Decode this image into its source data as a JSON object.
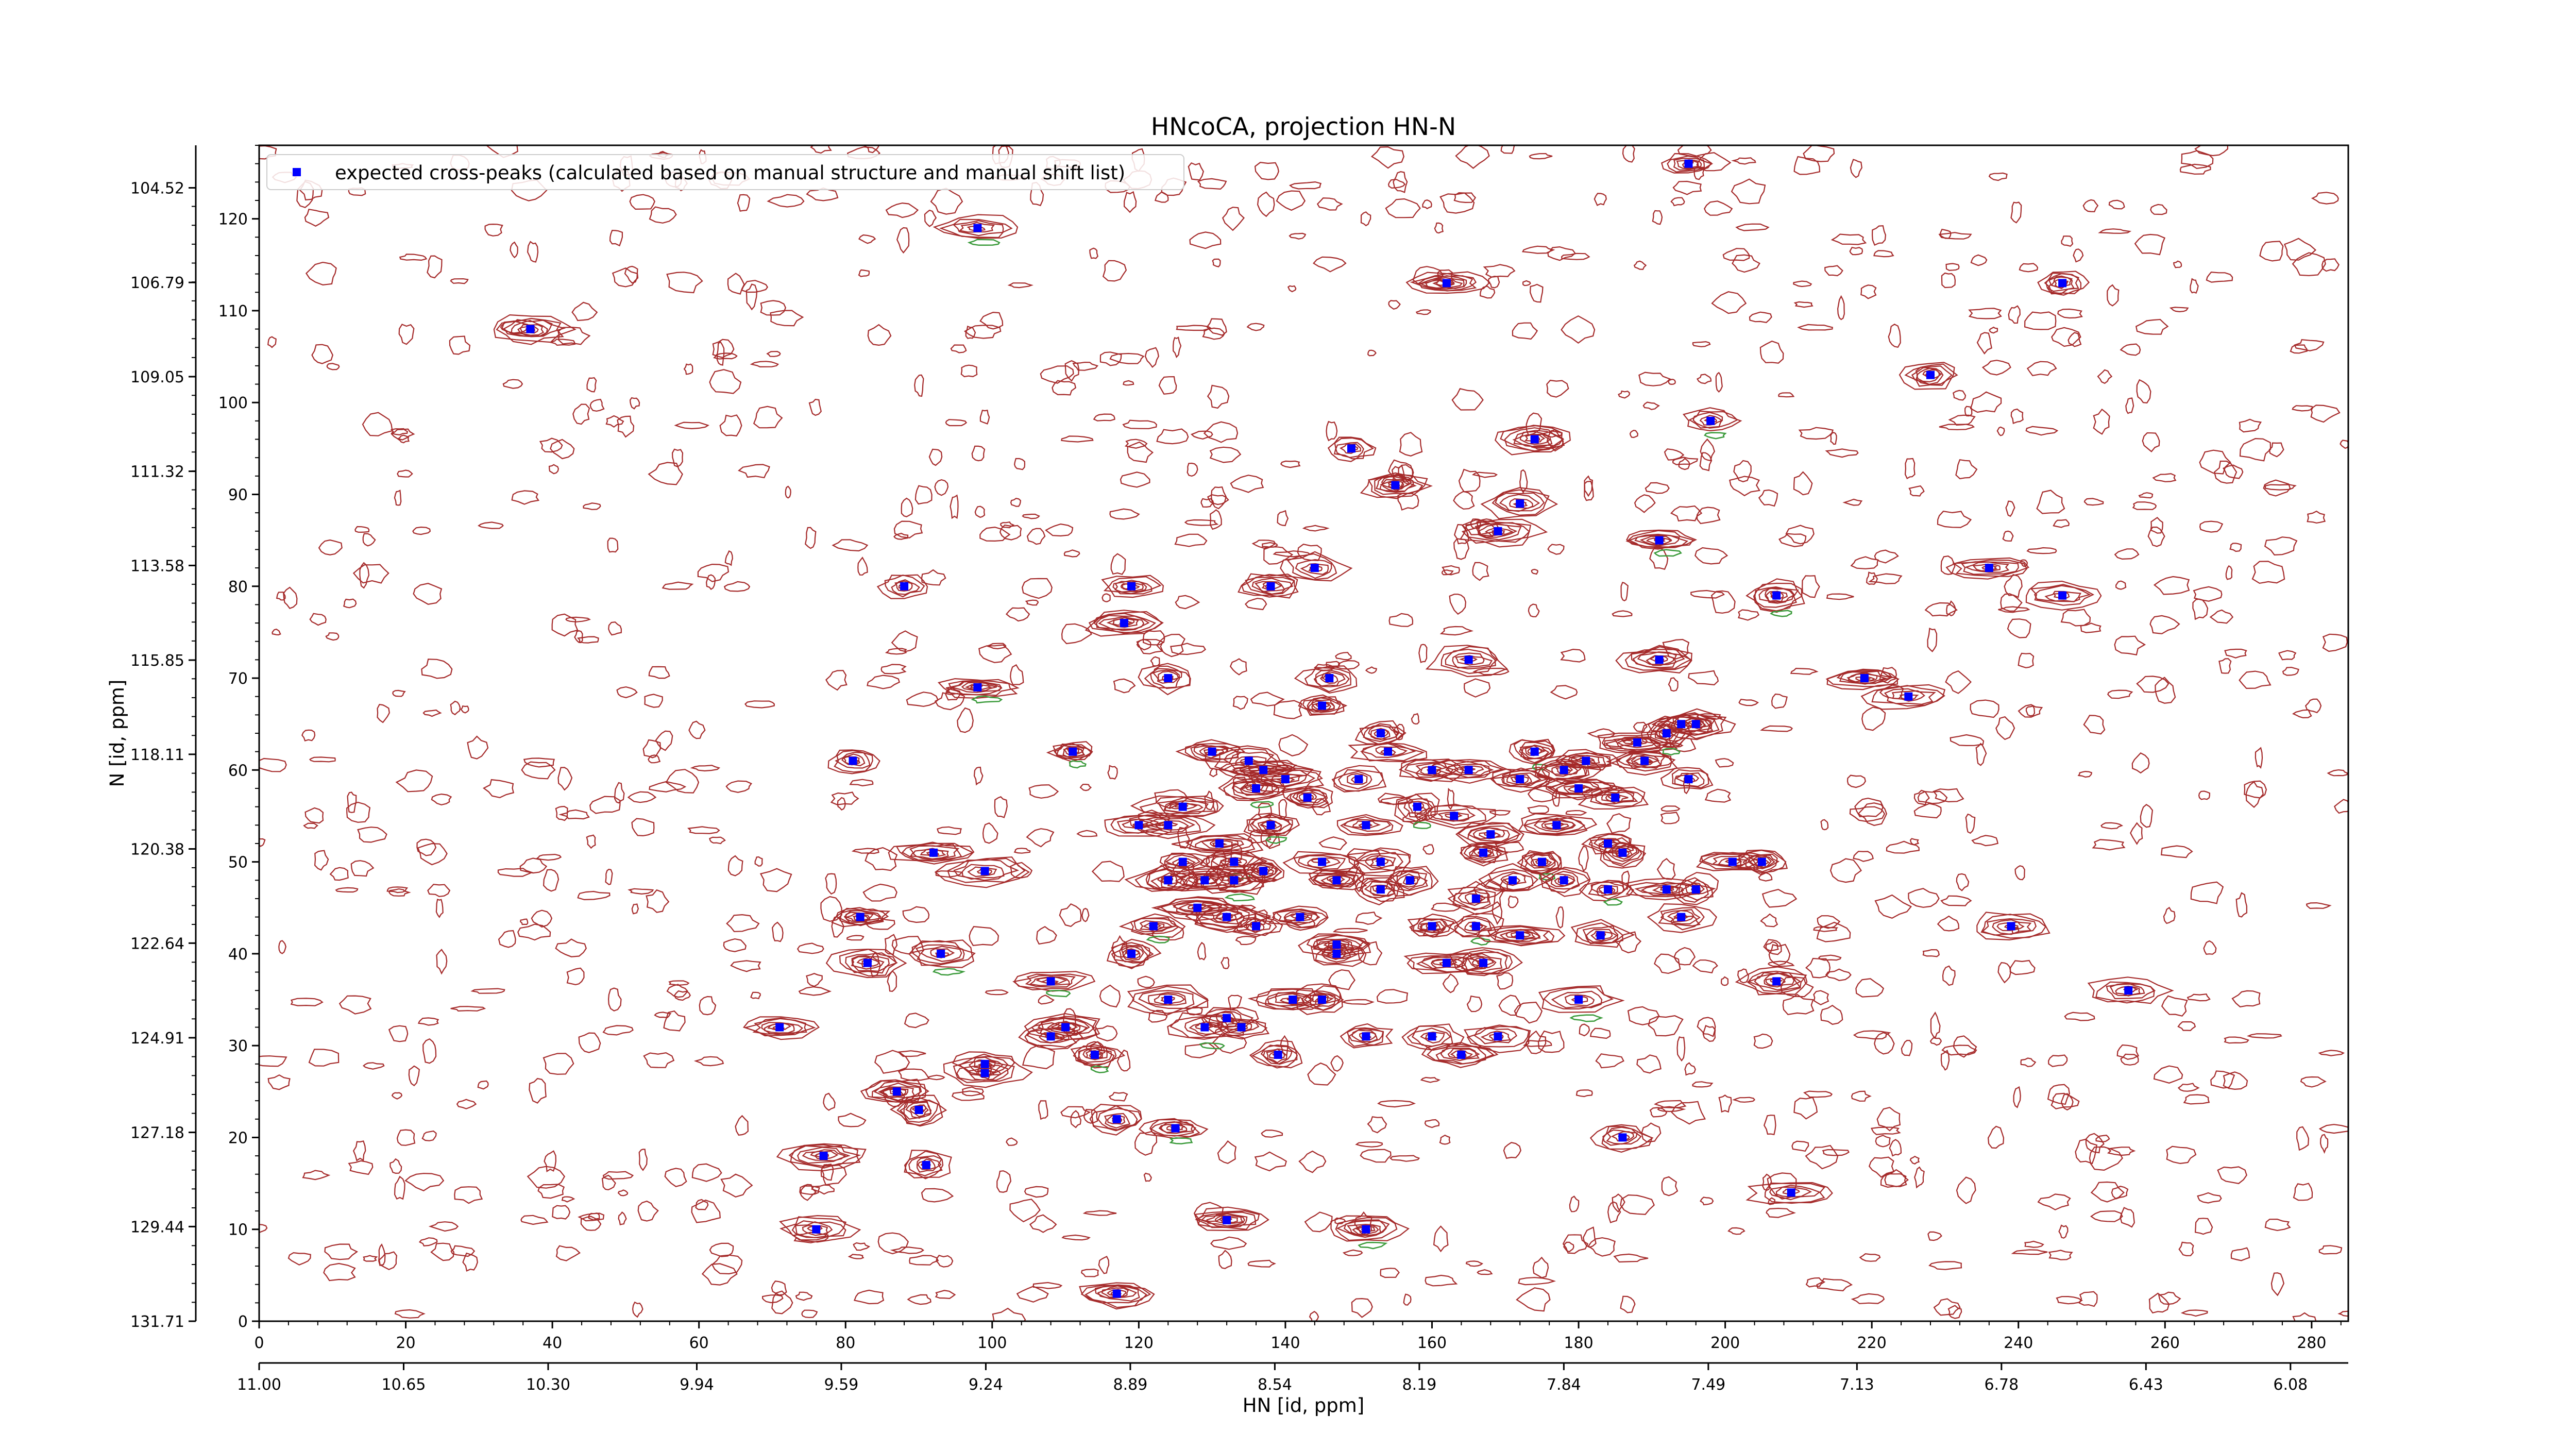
{
  "chart_data": {
    "type": "scatter",
    "title": "HNcoCA, projection HN-N",
    "xlabel": "HN [id, ppm]",
    "ylabel": "N [id, ppm]",
    "x_index_range": [
      0,
      285
    ],
    "y_index_range": [
      0,
      128
    ],
    "x_index_ticks": [
      "0",
      "20",
      "40",
      "60",
      "80",
      "100",
      "120",
      "140",
      "160",
      "180",
      "200",
      "220",
      "240",
      "260",
      "280"
    ],
    "y_index_ticks": [
      "0",
      "10",
      "20",
      "30",
      "40",
      "50",
      "60",
      "70",
      "80",
      "90",
      "100",
      "110",
      "120"
    ],
    "x_ppm_range": [
      11.0,
      5.94
    ],
    "y_ppm_range": [
      131.71,
      103.5
    ],
    "x_ppm_ticks": [
      "11.00",
      "10.65",
      "10.30",
      "9.94",
      "9.59",
      "9.24",
      "8.89",
      "8.54",
      "8.19",
      "7.84",
      "7.49",
      "7.13",
      "6.78",
      "6.43",
      "6.08"
    ],
    "y_ppm_ticks": [
      "131.71",
      "129.44",
      "127.18",
      "124.91",
      "122.64",
      "120.38",
      "118.11",
      "115.85",
      "113.58",
      "111.32",
      "109.05",
      "106.79",
      "104.52"
    ],
    "legend": {
      "placement": "top-left",
      "label": "expected cross-peaks (calculated based on manual structure and manual shift list)"
    },
    "grid": false,
    "colors": {
      "marker": "#0000ff",
      "contour_positive": "#a52a2a",
      "contour_negative": "#3a9a3a"
    },
    "series": [
      {
        "name": "expected cross-peaks (calculated based on manual structure and manual shift list)",
        "points": [
          [
            98,
            119
          ],
          [
            37,
            108
          ],
          [
            162,
            113
          ],
          [
            246,
            113
          ],
          [
            195,
            126
          ],
          [
            228,
            103
          ],
          [
            198,
            98
          ],
          [
            174,
            96
          ],
          [
            149,
            95
          ],
          [
            155,
            91
          ],
          [
            172,
            89
          ],
          [
            169,
            86
          ],
          [
            191,
            85
          ],
          [
            236,
            82
          ],
          [
            88,
            80
          ],
          [
            119,
            80
          ],
          [
            138,
            80
          ],
          [
            144,
            82
          ],
          [
            207,
            79
          ],
          [
            246,
            79
          ],
          [
            118,
            76
          ],
          [
            165,
            72
          ],
          [
            191,
            72
          ],
          [
            124,
            70
          ],
          [
            98,
            69
          ],
          [
            146,
            70
          ],
          [
            219,
            70
          ],
          [
            225,
            68
          ],
          [
            145,
            67
          ],
          [
            153,
            64
          ],
          [
            111,
            62
          ],
          [
            81,
            61
          ],
          [
            130,
            62
          ],
          [
            154,
            62
          ],
          [
            181,
            61
          ],
          [
            188,
            63
          ],
          [
            192,
            64
          ],
          [
            194,
            65
          ],
          [
            196,
            65
          ],
          [
            135,
            61
          ],
          [
            137,
            60
          ],
          [
            140,
            59
          ],
          [
            136,
            58
          ],
          [
            143,
            57
          ],
          [
            150,
            59
          ],
          [
            160,
            60
          ],
          [
            165,
            60
          ],
          [
            172,
            59
          ],
          [
            174,
            62
          ],
          [
            178,
            60
          ],
          [
            180,
            58
          ],
          [
            185,
            57
          ],
          [
            189,
            61
          ],
          [
            195,
            59
          ],
          [
            158,
            56
          ],
          [
            163,
            55
          ],
          [
            126,
            56
          ],
          [
            124,
            54
          ],
          [
            120,
            54
          ],
          [
            131,
            52
          ],
          [
            138,
            54
          ],
          [
            151,
            54
          ],
          [
            168,
            53
          ],
          [
            177,
            54
          ],
          [
            184,
            52
          ],
          [
            126,
            50
          ],
          [
            133,
            50
          ],
          [
            137,
            49
          ],
          [
            145,
            50
          ],
          [
            153,
            50
          ],
          [
            157,
            48
          ],
          [
            167,
            51
          ],
          [
            175,
            50
          ],
          [
            186,
            51
          ],
          [
            92,
            51
          ],
          [
            99,
            49
          ],
          [
            124,
            48
          ],
          [
            129,
            48
          ],
          [
            133,
            48
          ],
          [
            147,
            48
          ],
          [
            153,
            47
          ],
          [
            166,
            46
          ],
          [
            171,
            48
          ],
          [
            178,
            48
          ],
          [
            184,
            47
          ],
          [
            192,
            47
          ],
          [
            201,
            50
          ],
          [
            205,
            50
          ],
          [
            196,
            47
          ],
          [
            82,
            44
          ],
          [
            122,
            43
          ],
          [
            128,
            45
          ],
          [
            132,
            44
          ],
          [
            136,
            43
          ],
          [
            142,
            44
          ],
          [
            160,
            43
          ],
          [
            166,
            43
          ],
          [
            172,
            42
          ],
          [
            183,
            42
          ],
          [
            194,
            44
          ],
          [
            239,
            43
          ],
          [
            83,
            39
          ],
          [
            93,
            40
          ],
          [
            119,
            40
          ],
          [
            147,
            40
          ],
          [
            147,
            41
          ],
          [
            162,
            39
          ],
          [
            167,
            39
          ],
          [
            108,
            37
          ],
          [
            207,
            37
          ],
          [
            255,
            36
          ],
          [
            124,
            35
          ],
          [
            141,
            35
          ],
          [
            145,
            35
          ],
          [
            180,
            35
          ],
          [
            71,
            32
          ],
          [
            110,
            32
          ],
          [
            132,
            33
          ],
          [
            134,
            32
          ],
          [
            108,
            31
          ],
          [
            129,
            32
          ],
          [
            151,
            31
          ],
          [
            160,
            31
          ],
          [
            169,
            31
          ],
          [
            99,
            28
          ],
          [
            99,
            27
          ],
          [
            114,
            29
          ],
          [
            139,
            29
          ],
          [
            164,
            29
          ],
          [
            87,
            25
          ],
          [
            90,
            23
          ],
          [
            117,
            22
          ],
          [
            125,
            21
          ],
          [
            186,
            20
          ],
          [
            77,
            18
          ],
          [
            91,
            17
          ],
          [
            209,
            14
          ],
          [
            132,
            11
          ],
          [
            151,
            10
          ],
          [
            76,
            10
          ],
          [
            117,
            3
          ]
        ]
      }
    ]
  }
}
